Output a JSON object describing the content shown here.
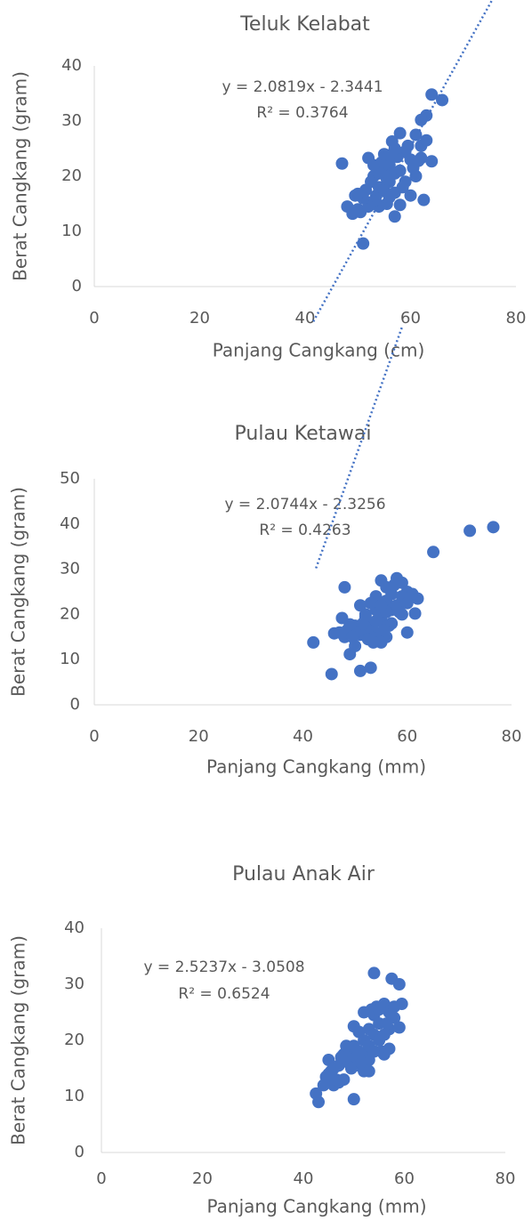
{
  "chart_data": [
    {
      "type": "scatter",
      "title": "Teluk Kelabat",
      "x_label": "Panjang Cangkang (cm)",
      "y_label": "Berat Cangkang (gram)",
      "annotations": [
        "y = 2.0819x - 2.3441",
        "R² = 0.3764"
      ],
      "color": "#4472c4",
      "trendline": {
        "slope": 2.0819,
        "intercept": -2.3441,
        "xrange": [
          47,
          66
        ]
      },
      "xlim": [
        0,
        80
      ],
      "xticks": [
        0,
        20,
        40,
        60,
        80
      ],
      "ylim": [
        0,
        40
      ],
      "yticks": [
        0,
        10,
        20,
        30,
        40
      ],
      "x": [
        47,
        51,
        57,
        62.5,
        64,
        66,
        63,
        62,
        61,
        58,
        48,
        49.5,
        50.5,
        52,
        60,
        64,
        62,
        56.5,
        59,
        60.5,
        55,
        54,
        53,
        56,
        57,
        55.5,
        54.5,
        53.5,
        52.5,
        51.5,
        50,
        58,
        59,
        60,
        57.5,
        56,
        55,
        54,
        53,
        56.5,
        58.5,
        61,
        62,
        57,
        55,
        52,
        51,
        49,
        50,
        57,
        55.5,
        54,
        56,
        59.5,
        63,
        61.5,
        58,
        53,
        56
      ],
      "values": [
        22.3,
        7.8,
        12.7,
        15.7,
        34.8,
        33.8,
        31,
        30.2,
        27.5,
        27.8,
        14.5,
        16.5,
        13.5,
        23.3,
        16.5,
        22.7,
        23.3,
        26.3,
        24.5,
        21.5,
        21,
        18,
        20,
        19,
        17,
        15,
        22.5,
        16.5,
        19,
        17.5,
        14,
        21,
        19,
        23,
        23.5,
        22,
        17.5,
        14.5,
        15.5,
        20.5,
        18,
        20,
        25.5,
        25,
        24,
        14.5,
        16,
        13.2,
        16.8,
        20.5,
        19.5,
        20.5,
        16.2,
        25.5,
        26.5,
        22.8,
        14.8,
        22,
        23.8
      ]
    },
    {
      "type": "scatter",
      "title": "Pulau Ketawai",
      "x_label": "Panjang Cangkang (mm)",
      "y_label": "Berat Cangkang (gram)",
      "annotations": [
        "y = 2.0744x - 2.3256",
        "R² = 0.4263"
      ],
      "color": "#4472c4",
      "trendline": {
        "slope": 2.0744,
        "intercept": -2.3256,
        "xrange": [
          42,
          76.5
        ]
      },
      "xlim": [
        0,
        80
      ],
      "xticks": [
        0,
        20,
        40,
        60,
        80
      ],
      "ylim": [
        0,
        50
      ],
      "yticks": [
        0,
        10,
        20,
        30,
        40,
        50
      ],
      "x": [
        42,
        45.5,
        51,
        53,
        48,
        47.5,
        46,
        49,
        50,
        48.5,
        50,
        51,
        52,
        53,
        54,
        55,
        56,
        57,
        58,
        59,
        60,
        61,
        62,
        61.5,
        59,
        60,
        65,
        72,
        76.5,
        57,
        56,
        55,
        54,
        53,
        52,
        51,
        50,
        49,
        47,
        48,
        52,
        54,
        55,
        56,
        57,
        58,
        53,
        55,
        56,
        59,
        54,
        56.5,
        57.5,
        58.5,
        60,
        53.5,
        51.5,
        49.5,
        55.5,
        52.5
      ],
      "values": [
        13.8,
        6.8,
        7.5,
        8.2,
        26,
        19.2,
        15.8,
        11.2,
        13,
        16.5,
        17.5,
        22,
        20,
        18,
        24,
        27.5,
        23,
        21,
        28,
        27,
        25,
        24.5,
        23.5,
        20.2,
        20,
        16,
        33.8,
        38.5,
        39.3,
        18,
        15,
        13.8,
        16,
        15,
        17,
        15.5,
        16,
        17.8,
        16,
        15,
        19.5,
        21,
        19,
        20.5,
        24.5,
        22,
        22.5,
        22,
        26,
        24,
        18.5,
        17.5,
        26.5,
        20.5,
        22.5,
        13.8,
        18,
        15,
        16.5,
        14.5
      ]
    },
    {
      "type": "scatter",
      "title": "Pulau Anak Air",
      "x_label": "Panjang Cangkang (mm)",
      "y_label": "Berat Cangkang (gram)",
      "annotations": [
        "y = 2.5237x - 3.0508",
        "R² = 0.6524"
      ],
      "color": "#4472c4",
      "trendline": {
        "slope": 2.5237,
        "intercept": -3.0508,
        "xrange": [
          42.5,
          59.5
        ]
      },
      "xlim": [
        0,
        80
      ],
      "xticks": [
        0,
        20,
        40,
        60,
        80
      ],
      "ylim": [
        0,
        40
      ],
      "yticks": [
        0,
        10,
        20,
        30,
        40
      ],
      "x": [
        43,
        42.5,
        44,
        45,
        45,
        46,
        46,
        47,
        47,
        48,
        48,
        49,
        49,
        50,
        50,
        50,
        51,
        51,
        51,
        52,
        52,
        52,
        52,
        53,
        53,
        53,
        54,
        54,
        54,
        54,
        54.5,
        55,
        55,
        55.5,
        56,
        56,
        56,
        57,
        57,
        57.5,
        58,
        58,
        59,
        59,
        59.5,
        48.5,
        47.5,
        46.5,
        49.5,
        50.5,
        51.5,
        53.5,
        55,
        56.5,
        45.5,
        44.5,
        53,
        57
      ],
      "values": [
        9,
        10.5,
        12,
        14,
        16.5,
        12,
        15,
        12.5,
        15.5,
        13,
        17.5,
        16,
        18,
        9.5,
        19,
        22.5,
        15.5,
        18,
        21.5,
        14.5,
        17.5,
        20,
        25,
        16.5,
        19,
        22,
        18,
        21,
        24.5,
        32,
        26,
        20,
        23,
        18,
        17.5,
        21,
        26.5,
        22,
        25,
        31,
        24,
        26,
        22.3,
        30,
        26.5,
        19,
        17,
        13,
        15,
        17,
        16,
        25.5,
        25.5,
        23,
        14.5,
        13.5,
        14.5,
        18.5
      ]
    }
  ]
}
